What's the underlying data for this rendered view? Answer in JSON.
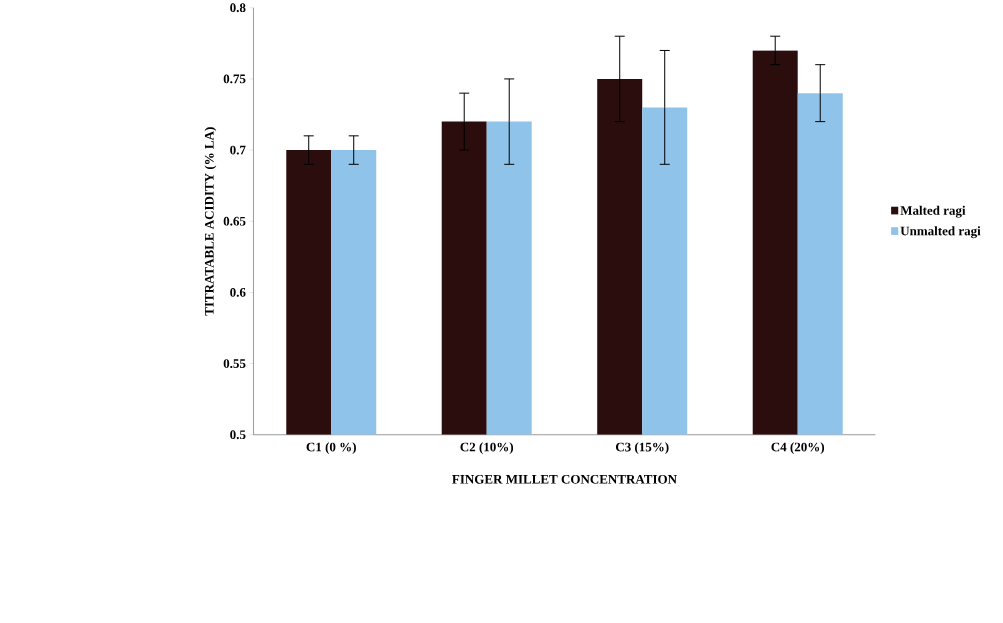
{
  "chart_data": {
    "type": "bar",
    "xlabel": "FINGER MILLET CONCENTRATION",
    "ylabel": "TITRATABLE ACIDITY (% LA)",
    "categories": [
      "C1 (0 %)",
      "C2 (10%)",
      "C3 (15%)",
      "C4 (20%)"
    ],
    "series": [
      {
        "name": "Malted ragi",
        "color": "#2b0d0d",
        "values": [
          0.7,
          0.72,
          0.75,
          0.77
        ],
        "errors": [
          0.01,
          0.02,
          0.03,
          0.01
        ]
      },
      {
        "name": "Unmalted ragi",
        "color": "#8fc3ea",
        "values": [
          0.7,
          0.72,
          0.73,
          0.74
        ],
        "errors": [
          0.01,
          0.03,
          0.04,
          0.02
        ]
      }
    ],
    "ylim": [
      0.5,
      0.8
    ],
    "yticks": [
      0.5,
      0.55,
      0.6,
      0.65,
      0.7,
      0.75,
      0.8
    ],
    "legend": "right"
  }
}
